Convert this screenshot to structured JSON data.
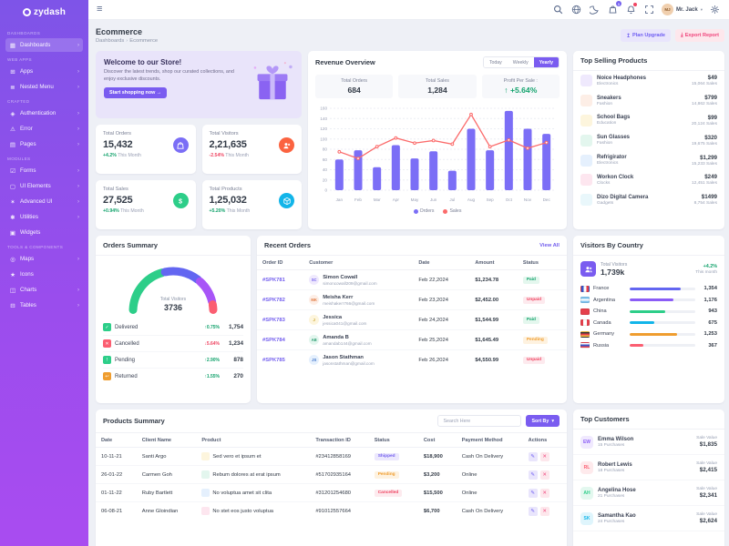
{
  "app": {
    "name": "zydash"
  },
  "header": {
    "user_name": "Mr. Jack",
    "cart_badge": "5"
  },
  "sidebar": {
    "sections": [
      {
        "label": "Dashboards",
        "items": [
          {
            "label": "Dashboards",
            "icon": "dashboard-icon",
            "active": true,
            "chevron": true
          }
        ]
      },
      {
        "label": "Web Apps",
        "items": [
          {
            "label": "Apps",
            "icon": "apps-icon",
            "chevron": true
          },
          {
            "label": "Nested Menu",
            "icon": "nested-menu-icon",
            "chevron": true
          }
        ]
      },
      {
        "label": "Crafted",
        "items": [
          {
            "label": "Authentication",
            "icon": "authentication-icon",
            "chevron": true
          },
          {
            "label": "Error",
            "icon": "error-icon",
            "chevron": true
          },
          {
            "label": "Pages",
            "icon": "pages-icon",
            "chevron": true
          }
        ]
      },
      {
        "label": "Modules",
        "items": [
          {
            "label": "Forms",
            "icon": "forms-icon",
            "chevron": true
          },
          {
            "label": "UI Elements",
            "icon": "ui-elements-icon",
            "chevron": true
          },
          {
            "label": "Advanced UI",
            "icon": "advanced-ui-icon",
            "chevron": true
          },
          {
            "label": "Utilities",
            "icon": "utilities-icon",
            "chevron": true
          },
          {
            "label": "Widgets",
            "icon": "widgets-icon",
            "chevron": false
          }
        ]
      },
      {
        "label": "Tools & Components",
        "items": [
          {
            "label": "Maps",
            "icon": "maps-icon",
            "chevron": true
          },
          {
            "label": "Icons",
            "icon": "icons-icon",
            "chevron": false
          },
          {
            "label": "Charts",
            "icon": "charts-icon",
            "chevron": true
          },
          {
            "label": "Tables",
            "icon": "tables-icon",
            "chevron": true
          }
        ]
      }
    ]
  },
  "page": {
    "title": "Ecommerce",
    "breadcrumb": [
      "Dashboards",
      "Ecommerce"
    ],
    "plan_upgrade": "Plan Upgrade",
    "export_report": "Export Report"
  },
  "welcome": {
    "title": "Welcome to our Store!",
    "subtitle": "Discover the latest trends, shop our curated collections, and enjoy exclusive discounts.",
    "cta": "Start shopping now →"
  },
  "stats": [
    {
      "label": "Total Orders",
      "value": "15,432",
      "change": "+4.2%",
      "trend": "up",
      "period": "This Month",
      "icon": "orders-bag-icon",
      "color": "#7b6ef6"
    },
    {
      "label": "Total Visitors",
      "value": "2,21,635",
      "change": "-2.54%",
      "trend": "down",
      "period": "This Month",
      "icon": "visitors-users-icon",
      "color": "#fb6340"
    },
    {
      "label": "Total Sales",
      "value": "27,525",
      "change": "+0.94%",
      "trend": "up",
      "period": "This Month",
      "icon": "sales-dollar-icon",
      "color": "#2dce89"
    },
    {
      "label": "Total Products",
      "value": "1,25,032",
      "change": "+5.20%",
      "trend": "up",
      "period": "This Month",
      "icon": "products-box-icon",
      "color": "#12b5e9"
    }
  ],
  "revenue": {
    "title": "Revenue Overview",
    "tabs": [
      "Today",
      "Weekly",
      "Yearly"
    ],
    "active_tab": "Yearly",
    "kpis": [
      {
        "label": "Total Orders",
        "value": "684"
      },
      {
        "label": "Total Sales",
        "value": "1,284"
      },
      {
        "label": "Profit Per Sale :",
        "value": "↑ +5.64%",
        "highlight": "#14a36d"
      }
    ],
    "chart_data": {
      "type": "bar",
      "categories": [
        "Jan",
        "Feb",
        "Mar",
        "Apr",
        "May",
        "Jun",
        "Jul",
        "Aug",
        "Sep",
        "Oct",
        "Nov",
        "Dec"
      ],
      "series": [
        {
          "name": "Orders",
          "type": "bar",
          "color": "#7b6ef6",
          "values": [
            60,
            78,
            45,
            88,
            62,
            76,
            38,
            120,
            78,
            155,
            120,
            110
          ]
        },
        {
          "name": "Sales",
          "type": "line",
          "color": "#fb6b6b",
          "values": [
            75,
            62,
            85,
            102,
            92,
            97,
            90,
            148,
            85,
            98,
            82,
            93
          ]
        }
      ],
      "ylim": [
        0,
        160
      ],
      "yticks": [
        0,
        20,
        40,
        60,
        80,
        100,
        120,
        140,
        160
      ],
      "legend_position": "bottom",
      "grid": true
    }
  },
  "top_products": {
    "title": "Top Selling Products",
    "items": [
      {
        "name": "Noice Headphones",
        "category": "Electronics",
        "price": "$49",
        "sales": "15,064 Sales"
      },
      {
        "name": "Sneakers",
        "category": "Fashion",
        "price": "$799",
        "sales": "14,862 Sales"
      },
      {
        "name": "School Bags",
        "category": "Education",
        "price": "$99",
        "sales": "20,124 Sales"
      },
      {
        "name": "Sun Glasses",
        "category": "Fashion",
        "price": "$320",
        "sales": "19,675 Sales"
      },
      {
        "name": "Refrigirator",
        "category": "Electronics",
        "price": "$1,299",
        "sales": "15,233 Sales"
      },
      {
        "name": "Workon Clock",
        "category": "Clocks",
        "price": "$249",
        "sales": "12,451 Sales"
      },
      {
        "name": "Dizo Digital Camera",
        "category": "Gadgets",
        "price": "$1499",
        "sales": "8,754 Sales"
      }
    ]
  },
  "orders_summary": {
    "title": "Orders Summary",
    "center_label": "Total Visitors",
    "center_value": "3736",
    "chart_data": {
      "type": "gauge",
      "segments": [
        {
          "label": "Delivered",
          "value": 1754,
          "color": "#2dce89"
        },
        {
          "label": "Cancelled",
          "value": 1234,
          "color": "#6366f1"
        },
        {
          "label": "Pending",
          "value": 878,
          "color": "#a855f7"
        },
        {
          "label": "Returned",
          "value": 270,
          "color": "#fb5e71"
        }
      ]
    },
    "rows": [
      {
        "label": "Delivered",
        "change": "+0.75%",
        "trend": "up",
        "value": "1,754",
        "icon": "check-icon",
        "icon_color": "#2dce89"
      },
      {
        "label": "Cancelled",
        "change": "-5.64%",
        "trend": "down",
        "value": "1,234",
        "icon": "cross-icon",
        "icon_color": "#fb5e71"
      },
      {
        "label": "Pending",
        "change": "+2.90%",
        "trend": "up",
        "value": "878",
        "icon": "clock-icon",
        "icon_color": "#2dce89"
      },
      {
        "label": "Returned",
        "change": "+1.55%",
        "trend": "up",
        "value": "270",
        "icon": "return-icon",
        "icon_color": "#ef9d2f"
      }
    ]
  },
  "recent_orders": {
    "title": "Recent Orders",
    "view_all": "View All",
    "columns": [
      "Order ID",
      "Customer",
      "Date",
      "Amount",
      "Status"
    ],
    "rows": [
      {
        "id": "#SPK781",
        "name": "Simon Cowall",
        "email": "simoncowall209@gmail.com",
        "date": "Feb 22,2024",
        "amount": "$1,234.78",
        "status": "Paid",
        "status_color": "green"
      },
      {
        "id": "#SPK782",
        "name": "Meisha Kerr",
        "email": "meishakerr766@gmail.com",
        "date": "Feb 23,2024",
        "amount": "$2,452.00",
        "status": "Unpaid",
        "status_color": "red"
      },
      {
        "id": "#SPK783",
        "name": "Jessica",
        "email": "jessica041@gmail.com",
        "date": "Feb 24,2024",
        "amount": "$1,544.99",
        "status": "Paid",
        "status_color": "green"
      },
      {
        "id": "#SPK784",
        "name": "Amanda B",
        "email": "amandab144@gmail.com",
        "date": "Feb 25,2024",
        "amount": "$1,645.49",
        "status": "Pending",
        "status_color": "orange"
      },
      {
        "id": "#SPK785",
        "name": "Jason Stathman",
        "email": "jasonstathman@gmail.com",
        "date": "Feb 26,2024",
        "amount": "$4,550.99",
        "status": "Unpaid",
        "status_color": "red"
      }
    ]
  },
  "visitors_by_country": {
    "title": "Visitors By Country",
    "total_label": "Total Visitors",
    "total_value": "1,739k",
    "change": "+4.2%",
    "period": "This month",
    "countries": [
      {
        "name": "France",
        "value": "1,354",
        "bar_color": "#6366f1",
        "bar_pct": 78
      },
      {
        "name": "Argentina",
        "value": "1,176",
        "bar_color": "#8b5cf6",
        "bar_pct": 66
      },
      {
        "name": "China",
        "value": "943",
        "bar_color": "#2dce89",
        "bar_pct": 54
      },
      {
        "name": "Canada",
        "value": "675",
        "bar_color": "#12b5e9",
        "bar_pct": 38
      },
      {
        "name": "Germany",
        "value": "1,253",
        "bar_color": "#ef9d2f",
        "bar_pct": 72
      },
      {
        "name": "Russia",
        "value": "367",
        "bar_color": "#fb5e71",
        "bar_pct": 21
      }
    ]
  },
  "products_summary": {
    "title": "Products Summary",
    "search_placeholder": "Search Here",
    "sort_by": "Sort By",
    "columns": [
      "Date",
      "Client Name",
      "Product",
      "Transaction ID",
      "Status",
      "Cost",
      "Payment Method",
      "Actions"
    ],
    "rows": [
      {
        "date": "10-11-21",
        "client": "Santi Argo",
        "product": "Sed vero et ipsum et",
        "txn": "#23412858169",
        "status": "Shipped",
        "status_color": "purple",
        "cost": "$18,900",
        "payment": "Cash On Delivery"
      },
      {
        "date": "26-01-22",
        "client": "Carmen Goh",
        "product": "Rebum dolores at erat ipsum",
        "txn": "#51702935164",
        "status": "Pending",
        "status_color": "orange",
        "cost": "$3,200",
        "payment": "Online"
      },
      {
        "date": "01-11-22",
        "client": "Ruby Bartlett",
        "product": "No voluptua amet sit clita",
        "txn": "#31201254680",
        "status": "Cancelled",
        "status_color": "red",
        "cost": "$15,500",
        "payment": "Online"
      },
      {
        "date": "06-08-21",
        "client": "Anne Gloindian",
        "product": "No stet eos justo voluptua",
        "txn": "#91012557664",
        "status": "",
        "status_color": "",
        "cost": "$6,700",
        "payment": "Cash On Delivery"
      }
    ]
  },
  "top_customers": {
    "title": "Top Customers",
    "items": [
      {
        "initials": "EW",
        "name": "Emma Wilson",
        "purchases": "15 Purchases",
        "label": "Sale Value",
        "value": "$1,835",
        "color": "#8b5cf6"
      },
      {
        "initials": "RL",
        "name": "Robert Lewis",
        "purchases": "18 Purchases",
        "label": "Sale Value",
        "value": "$2,415",
        "color": "#fb5e71"
      },
      {
        "initials": "AH",
        "name": "Angelina Hose",
        "purchases": "21 Purchases",
        "label": "Sale Value",
        "value": "$2,341",
        "color": "#2dce89"
      },
      {
        "initials": "SK",
        "name": "Samantha Kao",
        "purchases": "24 Purchases",
        "label": "Sale Value",
        "value": "$2,624",
        "color": "#12b5e9"
      }
    ]
  }
}
